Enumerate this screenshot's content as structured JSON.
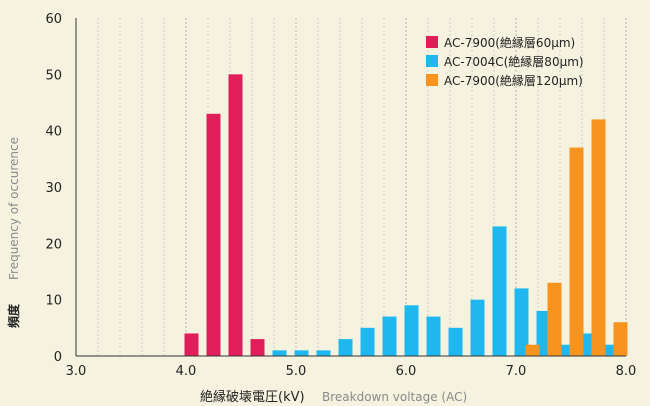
{
  "chart_data": {
    "type": "bar",
    "xlim": [
      3.0,
      8.0
    ],
    "ylim": [
      0,
      60
    ],
    "x_ticks": [
      "3.0",
      "4.0",
      "5.0",
      "6.0",
      "7.0",
      "8.0"
    ],
    "y_ticks": [
      "0",
      "10",
      "20",
      "30",
      "40",
      "50",
      "60"
    ],
    "grid": "vertical-dashed",
    "legend_position": "top-right",
    "xlabel_jp": "絶縁破壊電圧(kV)",
    "xlabel_en": "Breakdown voltage (AC)",
    "ylabel_jp": "頻度",
    "ylabel_en": "Frequency of occurence",
    "series": [
      {
        "name": "AC-7900(絶縁層60μm)",
        "color": "#e01e5a",
        "points": [
          [
            4.05,
            4
          ],
          [
            4.25,
            43
          ],
          [
            4.45,
            50
          ],
          [
            4.65,
            3
          ]
        ]
      },
      {
        "name": "AC-7004C(絶縁層80μm)",
        "color": "#1fb8ee",
        "points": [
          [
            4.85,
            1
          ],
          [
            5.05,
            1
          ],
          [
            5.25,
            1
          ],
          [
            5.45,
            3
          ],
          [
            5.65,
            5
          ],
          [
            5.85,
            7
          ],
          [
            6.05,
            9
          ],
          [
            6.25,
            7
          ],
          [
            6.45,
            5
          ],
          [
            6.65,
            10
          ],
          [
            6.85,
            23
          ],
          [
            7.05,
            12
          ],
          [
            7.25,
            8
          ],
          [
            7.45,
            2
          ],
          [
            7.65,
            4
          ],
          [
            7.85,
            2
          ]
        ]
      },
      {
        "name": "AC-7900(絶縁層120μm)",
        "color": "#f7941d",
        "points": [
          [
            7.15,
            2
          ],
          [
            7.35,
            13
          ],
          [
            7.55,
            37
          ],
          [
            7.75,
            42
          ],
          [
            7.95,
            6
          ]
        ]
      }
    ]
  }
}
